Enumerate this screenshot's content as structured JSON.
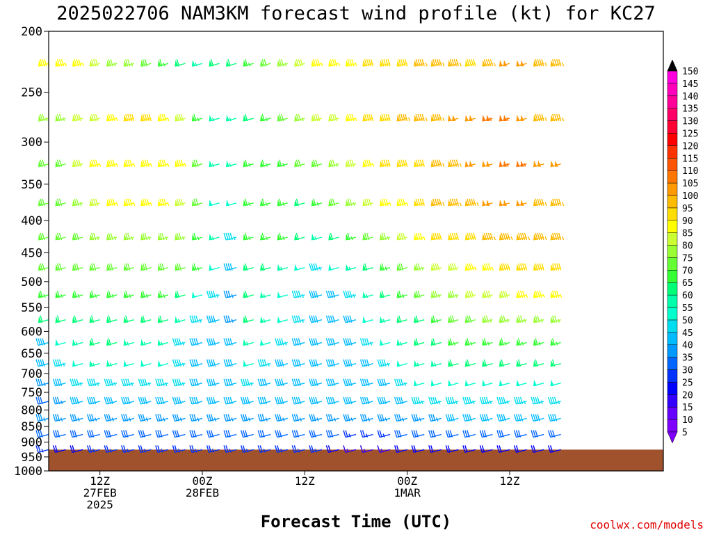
{
  "chart_data": {
    "type": "wind-profile",
    "title": "2025022706 NAM3KM forecast wind profile (kt) for KC27",
    "xlabel": "Forecast Time (UTC)",
    "ylabel": "",
    "credit": "coolwx.com/models",
    "y_axis": {
      "scale": "log",
      "range": [
        200,
        1000
      ],
      "ticks": [
        "200",
        "250",
        "300",
        "350",
        "400",
        "450",
        "500",
        "550",
        "600",
        "650",
        "700",
        "750",
        "800",
        "850",
        "900",
        "950",
        "1000"
      ]
    },
    "x_axis": {
      "range_hours": [
        0,
        72
      ],
      "ticks": [
        {
          "hour": 6,
          "lines": [
            "12Z",
            "27FEB",
            "2025"
          ]
        },
        {
          "hour": 18,
          "lines": [
            "00Z",
            "28FEB"
          ]
        },
        {
          "hour": 30,
          "lines": [
            "12Z"
          ]
        },
        {
          "hour": 42,
          "lines": [
            "00Z",
            "1MAR"
          ]
        },
        {
          "hour": 54,
          "lines": [
            "12Z"
          ]
        }
      ]
    },
    "surface_pressure_hpa": 925,
    "surface_color": "#a0522d",
    "legend": {
      "placement": "right",
      "levels": [
        "5",
        "10",
        "15",
        "20",
        "25",
        "30",
        "35",
        "40",
        "45",
        "50",
        "55",
        "60",
        "65",
        "70",
        "75",
        "80",
        "85",
        "90",
        "95",
        "100",
        "105",
        "110",
        "115",
        "120",
        "125",
        "130",
        "135",
        "140",
        "145",
        "150"
      ],
      "colors": [
        "#7f00ff",
        "#6600ff",
        "#3300ff",
        "#0000ff",
        "#0033ff",
        "#0066ff",
        "#0099ff",
        "#00bbff",
        "#00ddee",
        "#00ffcc",
        "#00ffaa",
        "#00ff77",
        "#33ff33",
        "#66ff33",
        "#99ff33",
        "#ccff33",
        "#ffff00",
        "#ffdd00",
        "#ffbb00",
        "#ff9900",
        "#ff7700",
        "#ff5500",
        "#ff3300",
        "#ff0000",
        "#ff0033",
        "#ff0066",
        "#ff0099",
        "#ff00bb",
        "#ff00dd",
        "#ff00ff"
      ]
    },
    "barb_pressure_levels": [
      225,
      275,
      325,
      375,
      425,
      475,
      525,
      575,
      625,
      675,
      725,
      775,
      825,
      875,
      925
    ],
    "barb_times_hours": [
      0,
      2,
      4,
      6,
      8,
      10,
      12,
      14,
      16,
      18,
      20,
      22,
      24,
      26,
      28,
      30,
      32,
      34,
      36,
      38,
      40,
      42,
      44,
      46,
      48,
      50,
      52,
      54,
      56,
      58,
      60
    ],
    "barb_speed_kt": [
      [
        85,
        85,
        85,
        80,
        75,
        75,
        70,
        65,
        60,
        55,
        60,
        60,
        65,
        70,
        75,
        80,
        85,
        85,
        85,
        90,
        90,
        90,
        95,
        95,
        95,
        90,
        95,
        100,
        100,
        95,
        95
      ],
      [
        75,
        75,
        80,
        80,
        85,
        90,
        90,
        85,
        80,
        65,
        55,
        55,
        60,
        65,
        70,
        75,
        80,
        80,
        85,
        90,
        90,
        95,
        95,
        95,
        100,
        100,
        105,
        105,
        100,
        95,
        95
      ],
      [
        70,
        70,
        80,
        85,
        85,
        85,
        85,
        85,
        85,
        70,
        55,
        55,
        65,
        65,
        65,
        70,
        70,
        75,
        80,
        85,
        90,
        90,
        90,
        95,
        95,
        100,
        100,
        105,
        105,
        100,
        100
      ],
      [
        70,
        70,
        75,
        80,
        85,
        85,
        85,
        85,
        80,
        70,
        50,
        50,
        65,
        65,
        65,
        60,
        65,
        70,
        75,
        80,
        85,
        85,
        90,
        95,
        95,
        95,
        100,
        100,
        100,
        95,
        95
      ],
      [
        70,
        70,
        70,
        75,
        75,
        75,
        75,
        75,
        75,
        65,
        55,
        45,
        65,
        65,
        65,
        60,
        55,
        60,
        65,
        70,
        75,
        80,
        85,
        90,
        90,
        90,
        95,
        95,
        95,
        95,
        95
      ],
      [
        70,
        70,
        70,
        70,
        70,
        70,
        70,
        70,
        70,
        65,
        50,
        40,
        60,
        60,
        55,
        50,
        45,
        50,
        55,
        60,
        65,
        70,
        75,
        80,
        80,
        85,
        85,
        90,
        90,
        90,
        90
      ],
      [
        65,
        65,
        65,
        65,
        65,
        65,
        65,
        65,
        60,
        50,
        45,
        35,
        60,
        55,
        50,
        45,
        40,
        40,
        45,
        55,
        60,
        65,
        70,
        75,
        75,
        80,
        80,
        80,
        85,
        85,
        85
      ],
      [
        60,
        60,
        60,
        60,
        60,
        60,
        60,
        60,
        55,
        45,
        40,
        35,
        60,
        55,
        50,
        45,
        40,
        40,
        40,
        50,
        55,
        60,
        60,
        65,
        70,
        70,
        75,
        75,
        75,
        75,
        75
      ],
      [
        40,
        50,
        55,
        60,
        60,
        55,
        55,
        55,
        45,
        40,
        40,
        40,
        55,
        50,
        45,
        40,
        40,
        40,
        40,
        45,
        50,
        55,
        60,
        60,
        65,
        65,
        65,
        65,
        65,
        65,
        65
      ],
      [
        40,
        45,
        50,
        55,
        55,
        50,
        50,
        50,
        45,
        40,
        40,
        40,
        50,
        45,
        40,
        40,
        40,
        40,
        40,
        40,
        45,
        50,
        55,
        55,
        60,
        60,
        60,
        60,
        60,
        60,
        60
      ],
      [
        35,
        40,
        45,
        45,
        45,
        45,
        45,
        45,
        45,
        40,
        40,
        40,
        45,
        40,
        40,
        40,
        40,
        40,
        40,
        40,
        40,
        45,
        50,
        50,
        50,
        50,
        50,
        50,
        50,
        50,
        50
      ],
      [
        30,
        35,
        40,
        40,
        40,
        40,
        40,
        40,
        40,
        40,
        40,
        40,
        40,
        40,
        40,
        40,
        40,
        40,
        40,
        40,
        40,
        40,
        45,
        45,
        45,
        45,
        45,
        45,
        45,
        45,
        45
      ],
      [
        35,
        35,
        35,
        35,
        35,
        35,
        35,
        35,
        35,
        35,
        35,
        35,
        35,
        35,
        35,
        35,
        35,
        35,
        35,
        35,
        35,
        35,
        35,
        35,
        40,
        40,
        40,
        40,
        40,
        40,
        40
      ],
      [
        30,
        30,
        30,
        30,
        30,
        30,
        30,
        30,
        30,
        30,
        30,
        30,
        30,
        30,
        30,
        30,
        30,
        30,
        25,
        25,
        25,
        30,
        30,
        30,
        30,
        30,
        30,
        30,
        30,
        30,
        30
      ],
      [
        25,
        20,
        20,
        25,
        25,
        25,
        25,
        25,
        25,
        25,
        25,
        25,
        25,
        25,
        25,
        25,
        25,
        20,
        15,
        15,
        15,
        20,
        20,
        20,
        20,
        20,
        20,
        20,
        20,
        20,
        20
      ]
    ]
  }
}
